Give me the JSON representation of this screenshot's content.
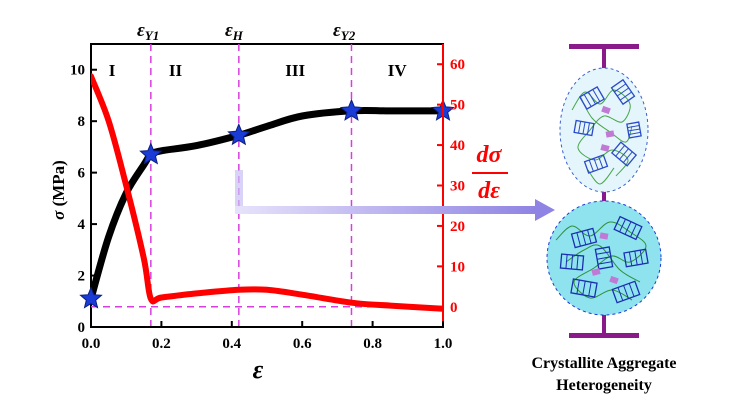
{
  "chart_data": {
    "type": "line",
    "x": [
      0.0,
      0.05,
      0.1,
      0.15,
      0.17,
      0.2,
      0.3,
      0.42,
      0.5,
      0.6,
      0.74,
      0.85,
      1.0
    ],
    "series": [
      {
        "name": "σ",
        "axis": "left",
        "color": "#000000",
        "values": [
          1.1,
          3.5,
          5.2,
          6.3,
          6.7,
          6.85,
          7.05,
          7.45,
          7.8,
          8.2,
          8.4,
          8.4,
          8.4
        ]
      },
      {
        "name": "dσ/dε",
        "axis": "right",
        "color": "#ff0000",
        "values": [
          57,
          46,
          30,
          12,
          2,
          2.3,
          3.3,
          4.2,
          4.2,
          3.0,
          1.0,
          0.3,
          -0.5
        ]
      }
    ],
    "markers": {
      "shape": "star",
      "color": "#1a3bd6",
      "points": [
        [
          0.0,
          1.1
        ],
        [
          0.17,
          6.7
        ],
        [
          0.42,
          7.45
        ],
        [
          0.74,
          8.4
        ],
        [
          1.0,
          8.4
        ]
      ]
    },
    "xlabel": "ε",
    "ylabel_left": "σ (MPa)",
    "ylabel_right": "dσ/dε",
    "xlim": [
      0,
      1.0
    ],
    "ylim_left": [
      0,
      11
    ],
    "ylim_right": [
      -5,
      65
    ],
    "xticks": [
      "0.0",
      "0.2",
      "0.4",
      "0.6",
      "0.8",
      "1.0"
    ],
    "yticks_left": [
      "0",
      "2",
      "4",
      "6",
      "8",
      "10"
    ],
    "yticks_right": [
      "0",
      "10",
      "20",
      "30",
      "40",
      "50",
      "60"
    ],
    "xtick_values": [
      0,
      0.2,
      0.4,
      0.6,
      0.8,
      1.0
    ],
    "ytick_left_values": [
      0,
      2,
      4,
      6,
      8,
      10
    ],
    "ytick_right_values": [
      0,
      10,
      20,
      30,
      40,
      50,
      60
    ],
    "vlines": [
      {
        "x": 0.17,
        "label": "εY1"
      },
      {
        "x": 0.42,
        "label": "εH"
      },
      {
        "x": 0.74,
        "label": "εY2"
      }
    ],
    "region_labels": [
      {
        "x_center": 0.06,
        "label": "I"
      },
      {
        "x_center": 0.24,
        "label": "II"
      },
      {
        "x_center": 0.58,
        "label": "III"
      },
      {
        "x_center": 0.87,
        "label": "IV"
      }
    ],
    "zero_line_value": 0,
    "grid": false,
    "legend": "none"
  },
  "vline_labels": {
    "y1_base": "ε",
    "y1_sub": "Y1",
    "h_base": "ε",
    "h_sub": "H",
    "y2_base": "ε",
    "y2_sub": "Y2"
  },
  "right_label": {
    "num": "dσ",
    "den": "dε"
  },
  "left_label": {
    "sym": "σ",
    "unit": "(MPa)"
  },
  "x_label": "ε",
  "diagram": {
    "caption_line1": "Crystallite Aggregate",
    "caption_line2": "Heterogeneity"
  },
  "colors": {
    "stress": "#000000",
    "derivative": "#ff0000",
    "markers": "#1a3bd6",
    "vlines": "#d63ee0",
    "arrow": "#9e93e6",
    "clamp": "#8a1a8a",
    "top_ellipse_fill": "#e4f6fb",
    "bottom_circle_fill": "#8fe3ef"
  }
}
